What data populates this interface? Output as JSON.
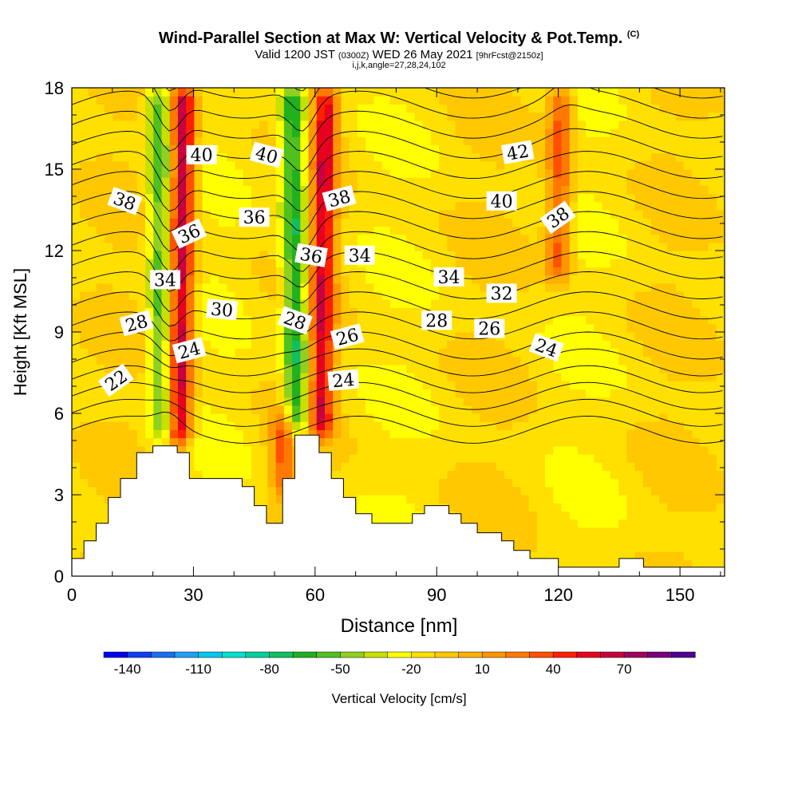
{
  "header": {
    "title_main": "Wind-Parallel Section at Max W: Vertical Velocity & Pot.Temp.",
    "title_mark": "(C)",
    "subtitle_a": "Valid 1200 JST",
    "subtitle_b": "(0300Z)",
    "subtitle_c": "WED 26 May 2021",
    "subtitle_d": "[9hrFcst@2150z]",
    "info": "i,j,k,angle=27,28,24,102"
  },
  "colors": {
    "scale": [
      "#0000ee",
      "#0f3ff0",
      "#1a6ef0",
      "#1fa0f5",
      "#00c8f0",
      "#00e0d0",
      "#00d0a0",
      "#10c060",
      "#20b020",
      "#50c020",
      "#90d020",
      "#c8e000",
      "#ffff00",
      "#ffe000",
      "#ffc800",
      "#ffb000",
      "#ff9600",
      "#ff7800",
      "#ff5000",
      "#ff2000",
      "#e80020",
      "#c80040",
      "#a00060",
      "#780080",
      "#500090"
    ]
  },
  "chart_data": {
    "type": "heatmap",
    "subtype": "cross-section: filled vertical velocity with potential temperature contours",
    "xlabel": "Distance [nm]",
    "ylabel": "Height [Kft MSL]",
    "xlim": [
      0,
      161
    ],
    "ylim": [
      0,
      18
    ],
    "xticks": [
      0,
      30,
      60,
      90,
      120,
      150
    ],
    "yticks": [
      0,
      3,
      6,
      9,
      12,
      15,
      18
    ],
    "colorbar": {
      "label": "Vertical Velocity [cm/s]",
      "tick_labels": [
        "-140",
        "-110",
        "-80",
        "-50",
        "-20",
        "10",
        "40",
        "70"
      ],
      "tick_values": [
        -140,
        -110,
        -80,
        -50,
        -20,
        10,
        40,
        70
      ],
      "min": -150,
      "max": 100,
      "step": 10
    },
    "velocity_features": [
      {
        "x": 27,
        "ymin": 4.8,
        "ymax": 18,
        "w": 85,
        "label": "updraft"
      },
      {
        "x": 22,
        "ymin": 5,
        "ymax": 18,
        "w": -45,
        "label": "downdraft"
      },
      {
        "x": 55,
        "ymin": 5.2,
        "ymax": 18,
        "w": -60,
        "label": "downdraft"
      },
      {
        "x": 62,
        "ymin": 5.2,
        "ymax": 18,
        "w": 70,
        "label": "updraft"
      },
      {
        "x": 120,
        "ymin": 11,
        "ymax": 18,
        "w": 50,
        "label": "updraft"
      },
      {
        "x": 52,
        "ymin": 3,
        "ymax": 6,
        "w": 45,
        "label": "low-level updraft"
      }
    ],
    "terrain": [
      [
        0,
        0.65
      ],
      [
        3,
        0.65
      ],
      [
        3,
        1.3
      ],
      [
        6,
        1.3
      ],
      [
        6,
        1.95
      ],
      [
        9,
        1.95
      ],
      [
        9,
        2.9
      ],
      [
        12,
        2.9
      ],
      [
        12,
        3.6
      ],
      [
        16,
        3.6
      ],
      [
        16,
        4.55
      ],
      [
        20,
        4.55
      ],
      [
        20,
        4.8
      ],
      [
        26,
        4.8
      ],
      [
        26,
        4.55
      ],
      [
        29,
        4.55
      ],
      [
        29,
        3.6
      ],
      [
        42,
        3.6
      ],
      [
        42,
        3.3
      ],
      [
        45,
        3.3
      ],
      [
        45,
        2.6
      ],
      [
        48,
        2.6
      ],
      [
        48,
        1.95
      ],
      [
        52,
        1.95
      ],
      [
        52,
        3.6
      ],
      [
        55,
        3.6
      ],
      [
        55,
        5.2
      ],
      [
        61,
        5.2
      ],
      [
        61,
        4.55
      ],
      [
        64,
        4.55
      ],
      [
        64,
        3.6
      ],
      [
        67,
        3.6
      ],
      [
        67,
        2.9
      ],
      [
        70,
        2.9
      ],
      [
        70,
        2.3
      ],
      [
        74,
        2.3
      ],
      [
        74,
        1.95
      ],
      [
        84,
        1.95
      ],
      [
        84,
        2.3
      ],
      [
        87,
        2.3
      ],
      [
        87,
        2.6
      ],
      [
        93,
        2.6
      ],
      [
        93,
        2.3
      ],
      [
        96,
        2.3
      ],
      [
        96,
        1.95
      ],
      [
        100,
        1.95
      ],
      [
        100,
        1.6
      ],
      [
        106,
        1.6
      ],
      [
        106,
        1.3
      ],
      [
        109,
        1.3
      ],
      [
        109,
        0.95
      ],
      [
        113,
        0.95
      ],
      [
        113,
        0.65
      ],
      [
        120,
        0.65
      ],
      [
        120,
        0.33
      ],
      [
        135,
        0.33
      ],
      [
        135,
        0.65
      ],
      [
        141,
        0.65
      ],
      [
        141,
        0.33
      ],
      [
        151,
        0.33
      ],
      [
        151,
        0.33
      ],
      [
        161,
        0.33
      ]
    ],
    "theta_levels": [
      20,
      21,
      22,
      23,
      24,
      25,
      26,
      27,
      28,
      29,
      30,
      31,
      32,
      33,
      34,
      35,
      36,
      37,
      38,
      39,
      40,
      41,
      42,
      43
    ],
    "contour_labels": [
      {
        "text": "22",
        "x": 11,
        "y": 7.2,
        "angle": -35
      },
      {
        "text": "24",
        "x": 29,
        "y": 8.3,
        "angle": -15
      },
      {
        "text": "28",
        "x": 16,
        "y": 9.3,
        "angle": -15
      },
      {
        "text": "30",
        "x": 37,
        "y": 9.8,
        "angle": 5
      },
      {
        "text": "34",
        "x": 23,
        "y": 10.9,
        "angle": 0
      },
      {
        "text": "36",
        "x": 29,
        "y": 12.6,
        "angle": -25
      },
      {
        "text": "36",
        "x": 45,
        "y": 13.2,
        "angle": 0
      },
      {
        "text": "38",
        "x": 13,
        "y": 13.8,
        "angle": 20
      },
      {
        "text": "40",
        "x": 32,
        "y": 15.5,
        "angle": 0
      },
      {
        "text": "40",
        "x": 48,
        "y": 15.5,
        "angle": 15
      },
      {
        "text": "36",
        "x": 59,
        "y": 11.8,
        "angle": 10
      },
      {
        "text": "34",
        "x": 71,
        "y": 11.8,
        "angle": 0
      },
      {
        "text": "38",
        "x": 66,
        "y": 13.9,
        "angle": -15
      },
      {
        "text": "28",
        "x": 55,
        "y": 9.4,
        "angle": 20
      },
      {
        "text": "26",
        "x": 68,
        "y": 8.8,
        "angle": -15
      },
      {
        "text": "24",
        "x": 67,
        "y": 7.2,
        "angle": -5
      },
      {
        "text": "34",
        "x": 93,
        "y": 11.0,
        "angle": 0
      },
      {
        "text": "28",
        "x": 90,
        "y": 9.4,
        "angle": 0
      },
      {
        "text": "32",
        "x": 106,
        "y": 10.4,
        "angle": 0
      },
      {
        "text": "26",
        "x": 103,
        "y": 9.1,
        "angle": 0
      },
      {
        "text": "24",
        "x": 117,
        "y": 8.4,
        "angle": 20
      },
      {
        "text": "40",
        "x": 106,
        "y": 13.8,
        "angle": 0
      },
      {
        "text": "42",
        "x": 110,
        "y": 15.6,
        "angle": -10
      },
      {
        "text": "38",
        "x": 120,
        "y": 13.2,
        "angle": -35
      }
    ]
  }
}
